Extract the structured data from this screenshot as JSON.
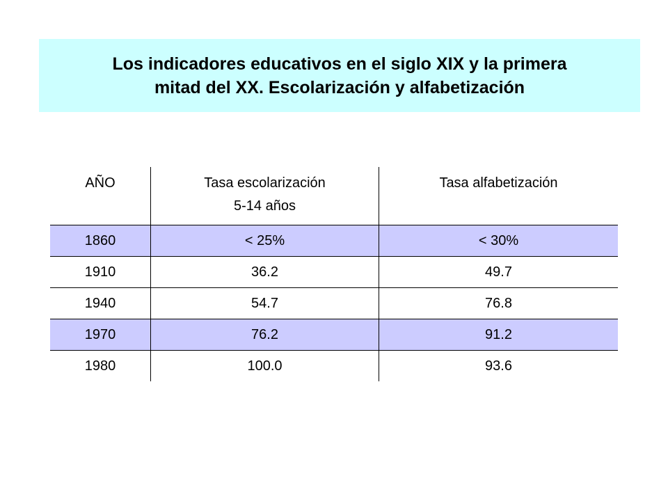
{
  "title": {
    "line1": "Los indicadores educativos en el siglo XIX y la primera",
    "line2": "mitad del XX. Escolarización y alfabetización"
  },
  "table": {
    "headers": {
      "col1": "AÑO",
      "col2_line1": "Tasa escolarización",
      "col2_line2": "5-14 años",
      "col3": "Tasa alfabetización"
    },
    "rows": [
      {
        "year": "1860",
        "school": "< 25%",
        "literacy": "< 30%",
        "shaded": true
      },
      {
        "year": "1910",
        "school": "36.2",
        "literacy": "49.7",
        "shaded": false
      },
      {
        "year": "1940",
        "school": "54.7",
        "literacy": "76.8",
        "shaded": false
      },
      {
        "year": "1970",
        "school": "76.2",
        "literacy": "91.2",
        "shaded": true
      },
      {
        "year": "1980",
        "school": "100.0",
        "literacy": "93.6",
        "shaded": false
      }
    ],
    "shade_color": "#ccccff",
    "title_bg_color": "#ccffff"
  }
}
